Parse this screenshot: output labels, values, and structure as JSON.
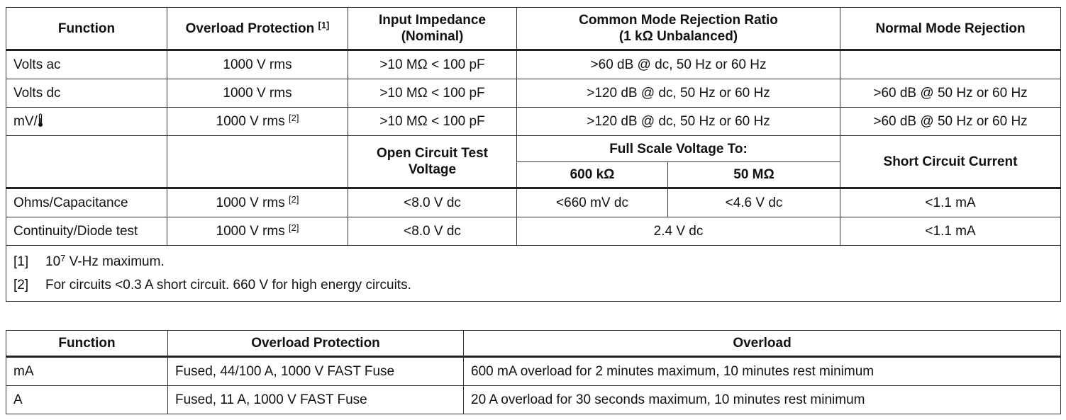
{
  "table1": {
    "header": {
      "function": "Function",
      "overload": "Overload Protection",
      "overload_note": "[1]",
      "impedance": [
        "Input Impedance",
        "(Nominal)"
      ],
      "cmrr": [
        "Common Mode Rejection Ratio",
        "(1 kΩ Unbalanced)"
      ],
      "nmr": "Normal Mode Rejection"
    },
    "rows": [
      {
        "function": "Volts ac",
        "overload": "1000 V rms",
        "impedance": ">10 MΩ < 100 pF",
        "cmrr": ">60 dB @ dc, 50 Hz or 60 Hz"
      },
      {
        "function": "Volts dc",
        "overload": "1000 V rms",
        "impedance": ">10 MΩ < 100 pF",
        "cmrr": ">120 dB @ dc, 50 Hz or 60 Hz",
        "nmr": ">60 dB @ 50 Hz or 60 Hz"
      },
      {
        "function": "mV/",
        "overload": "1000 V rms",
        "overload_note": "[2]",
        "impedance": ">10 MΩ < 100 pF",
        "cmrr": ">120 dB @ dc, 50 Hz or 60 Hz",
        "nmr": ">60 dB @ 50 Hz or 60 Hz"
      }
    ],
    "header2": {
      "open_circuit": [
        "Open Circuit Test",
        "Voltage"
      ],
      "full_scale": "Full Scale Voltage To:",
      "fs_600k": "600 kΩ",
      "fs_50m": "50 MΩ",
      "short_circuit": "Short Circuit Current"
    },
    "rows2": [
      {
        "function": "Ohms/Capacitance",
        "overload": "1000 V rms",
        "overload_note": "[2]",
        "open_circuit": "<8.0 V dc",
        "fs_600k": "<660 mV dc",
        "fs_50m": "<4.6 V dc",
        "short_circuit": "<1.1 mA"
      },
      {
        "function": "Continuity/Diode test",
        "overload": "1000 V rms",
        "overload_note": "[2]",
        "open_circuit": "<8.0 V dc",
        "full_scale": "2.4 V dc",
        "short_circuit": "<1.1 mA"
      }
    ],
    "notes": [
      {
        "mark": "[1]",
        "text": "10",
        "sup": "7",
        "rest": " V-Hz maximum."
      },
      {
        "mark": "[2]",
        "text": "For circuits <0.3 A short circuit. 660 V for high energy circuits."
      }
    ]
  },
  "table2": {
    "header": [
      "Function",
      "Overload Protection",
      "Overload"
    ],
    "rows": [
      [
        "mA",
        "Fused, 44/100 A, 1000 V FAST Fuse",
        "600 mA overload for 2 minutes maximum, 10 minutes rest minimum"
      ],
      [
        "A",
        "Fused, 11 A, 1000 V FAST Fuse",
        "20 A overload for 30 seconds maximum, 10 minutes rest minimum"
      ]
    ]
  }
}
